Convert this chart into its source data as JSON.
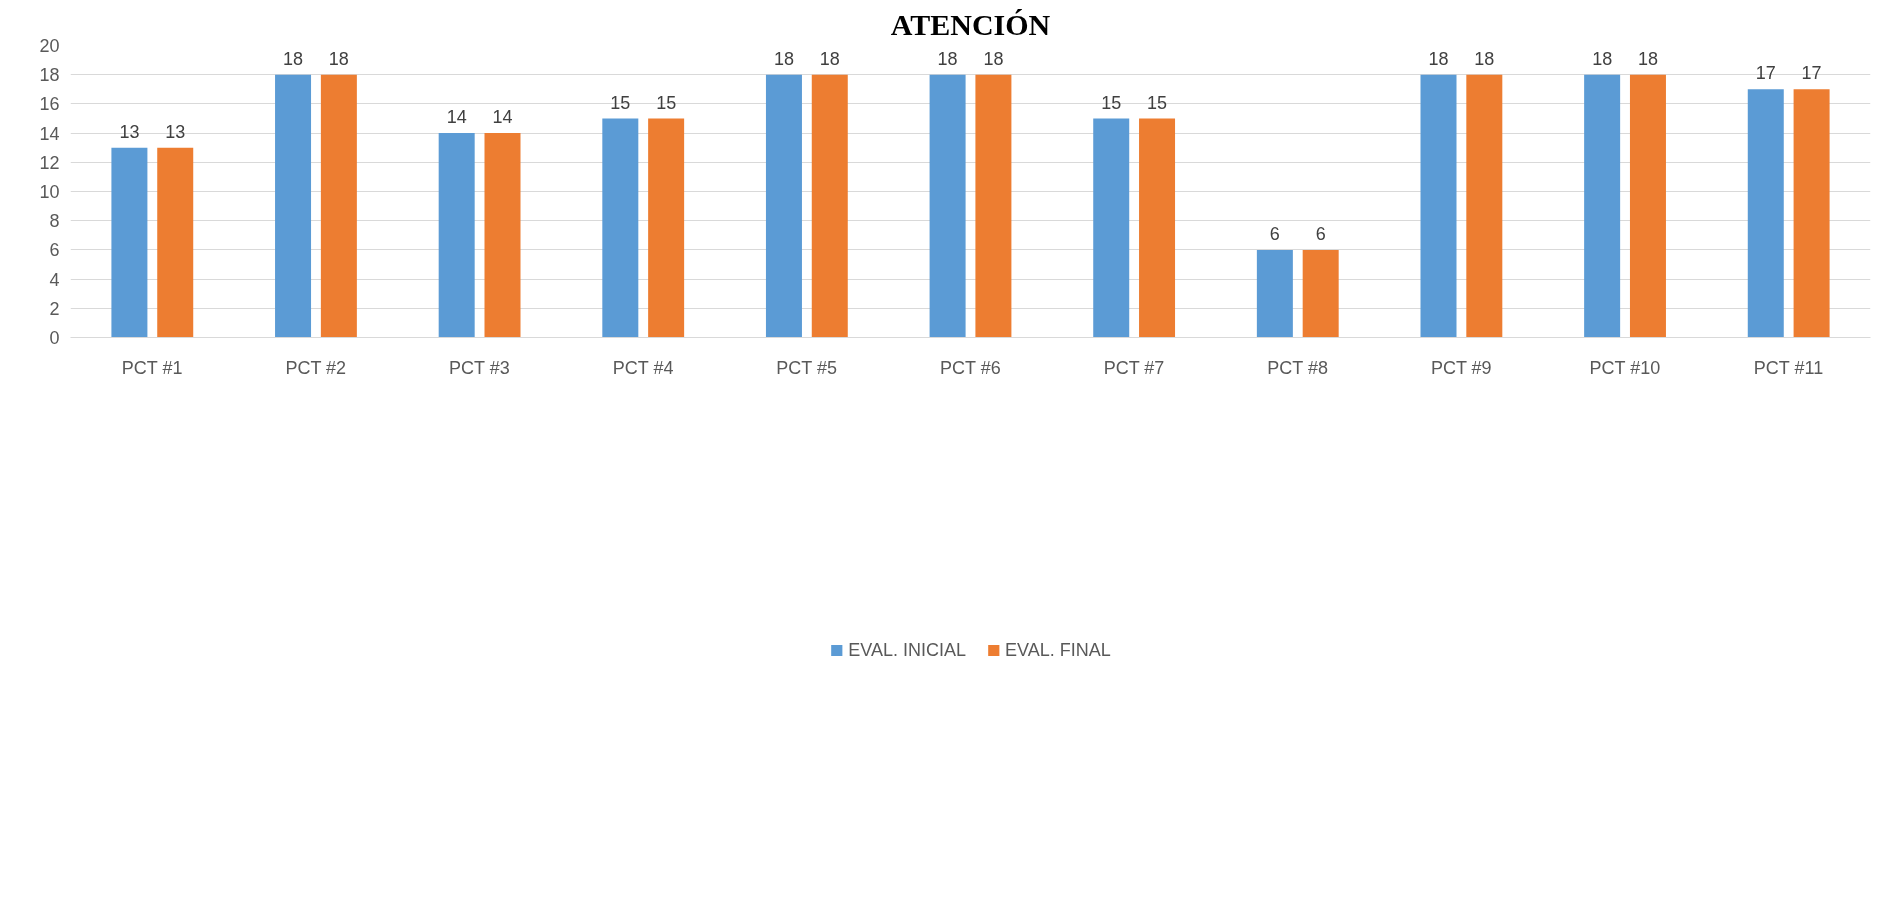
{
  "chart_data": {
    "type": "bar",
    "title": "ATENCIÓN",
    "categories": [
      "PCT #1",
      "PCT #2",
      "PCT #3",
      "PCT #4",
      "PCT #5",
      "PCT #6",
      "PCT #7",
      "PCT #8",
      "PCT #9",
      "PCT #10",
      "PCT #11"
    ],
    "series": [
      {
        "name": "EVAL. INICIAL",
        "color": "#5b9bd5",
        "values": [
          13,
          18,
          14,
          15,
          18,
          18,
          15,
          6,
          18,
          18,
          17
        ]
      },
      {
        "name": "EVAL. FINAL",
        "color": "#ed7d31",
        "values": [
          13,
          18,
          14,
          15,
          18,
          18,
          15,
          6,
          18,
          18,
          17
        ]
      }
    ],
    "ylim": [
      0,
      20
    ],
    "yticks": [
      0,
      2,
      4,
      6,
      8,
      10,
      12,
      14,
      16,
      18,
      20
    ],
    "grid": "y",
    "legend": "bottom",
    "data_labels": true
  }
}
